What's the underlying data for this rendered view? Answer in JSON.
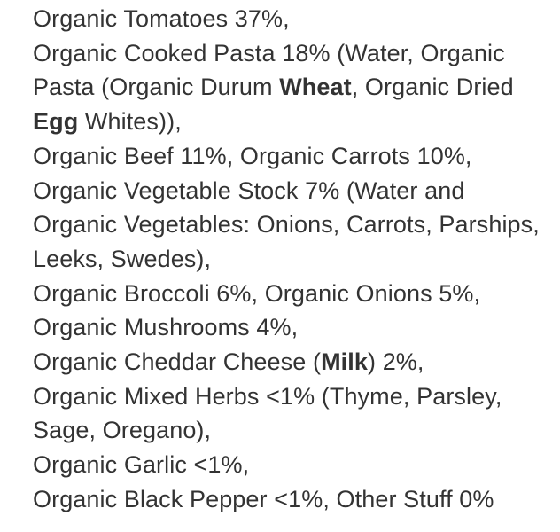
{
  "page": {
    "background_color": "#ffffff",
    "text_color": "#333333"
  },
  "ingredients_list": {
    "lines": [
      {
        "segments": [
          {
            "text": "Organic Tomatoes 37%,",
            "bold": false
          }
        ]
      },
      {
        "segments": [
          {
            "text": "Organic Cooked Pasta 18% (Water, Organic",
            "bold": false
          }
        ]
      },
      {
        "segments": [
          {
            "text": "Pasta (Organic Durum ",
            "bold": false
          },
          {
            "text": "Wheat",
            "bold": true
          },
          {
            "text": ", Organic Dried",
            "bold": false
          }
        ]
      },
      {
        "segments": [
          {
            "text": "Egg",
            "bold": true
          },
          {
            "text": " Whites)),",
            "bold": false
          }
        ]
      },
      {
        "segments": [
          {
            "text": "Organic Beef 11%, Organic Carrots 10%,",
            "bold": false
          }
        ]
      },
      {
        "segments": [
          {
            "text": "Organic Vegetable Stock 7% (Water and",
            "bold": false
          }
        ]
      },
      {
        "segments": [
          {
            "text": "Organic Vegetables: Onions, Carrots, Parships,",
            "bold": false
          }
        ]
      },
      {
        "segments": [
          {
            "text": "Leeks, Swedes),",
            "bold": false
          }
        ]
      },
      {
        "segments": [
          {
            "text": "Organic Broccoli 6%, Organic Onions 5%,",
            "bold": false
          }
        ]
      },
      {
        "segments": [
          {
            "text": "Organic Mushrooms 4%,",
            "bold": false
          }
        ]
      },
      {
        "segments": [
          {
            "text": "Organic Cheddar Cheese (",
            "bold": false
          },
          {
            "text": "Milk",
            "bold": true
          },
          {
            "text": ") 2%,",
            "bold": false
          }
        ]
      },
      {
        "segments": [
          {
            "text": "Organic Mixed Herbs <1% (Thyme, Parsley,",
            "bold": false
          }
        ]
      },
      {
        "segments": [
          {
            "text": "Sage, Oregano),",
            "bold": false
          }
        ]
      },
      {
        "segments": [
          {
            "text": "Organic Garlic <1%,",
            "bold": false
          }
        ]
      },
      {
        "segments": [
          {
            "text": "Organic Black Pepper <1%, Other Stuff 0%",
            "bold": false
          }
        ]
      }
    ]
  }
}
